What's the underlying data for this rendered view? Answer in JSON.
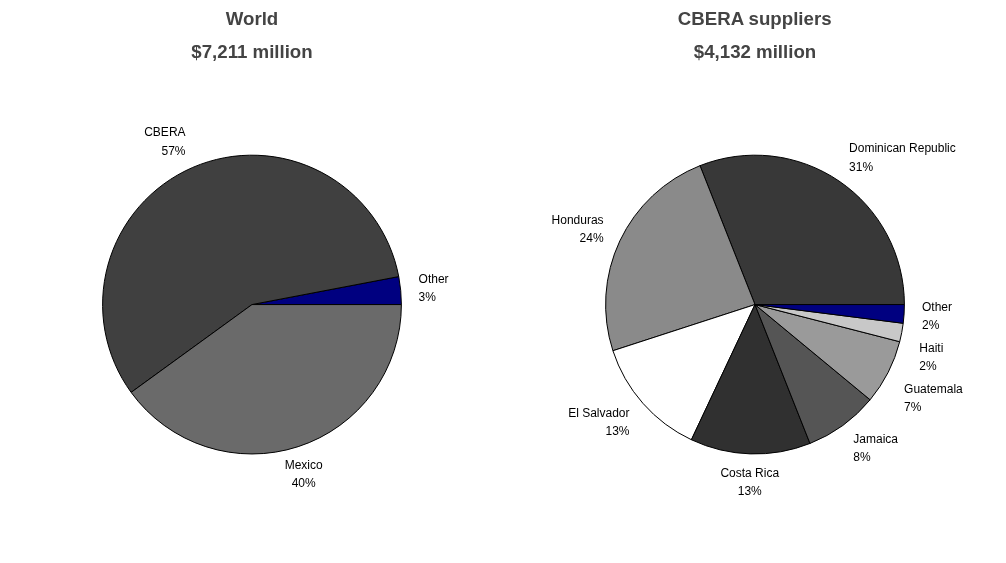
{
  "chart_data": [
    {
      "type": "pie",
      "title": "World",
      "subtitle": "$7,211 million",
      "categories": [
        "Other",
        "CBERA",
        "Mexico"
      ],
      "values": [
        3,
        57,
        40
      ],
      "value_labels": [
        "3%",
        "57%",
        "40%"
      ],
      "colors": [
        "#000080",
        "#404040",
        "#6a6a6a"
      ]
    },
    {
      "type": "pie",
      "title": "CBERA suppliers",
      "subtitle": "$4,132 million",
      "categories": [
        "Dominican Republic",
        "Honduras",
        "El Salvador",
        "Costa Rica",
        "Jamaica",
        "Guatemala",
        "Haiti",
        "Other"
      ],
      "values": [
        31,
        24,
        13,
        13,
        8,
        7,
        2,
        2
      ],
      "value_labels": [
        "31%",
        "24%",
        "13%",
        "13%",
        "8%",
        "7%",
        "2%",
        "2%"
      ],
      "colors": [
        "#383838",
        "#8a8a8a",
        "#ffffff",
        "#303030",
        "#555555",
        "#9a9a9a",
        "#c8c8c8",
        "#000080"
      ]
    }
  ]
}
